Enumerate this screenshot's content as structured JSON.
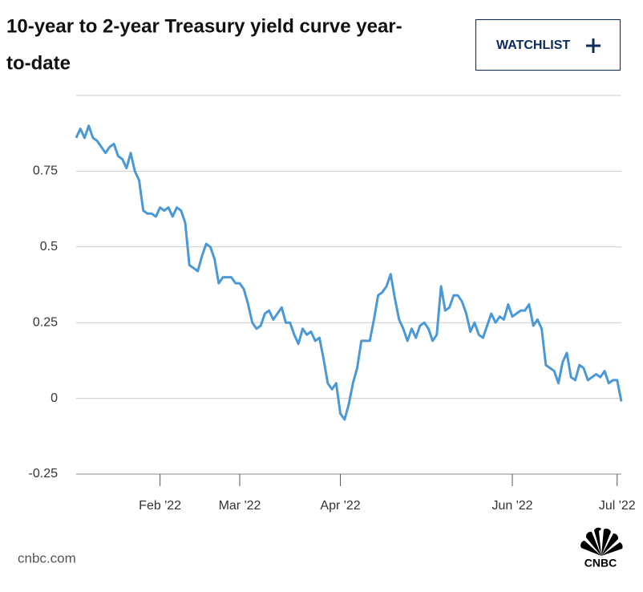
{
  "title": "10-year to 2-year Treasury yield curve year-to-date",
  "watchlist": "WATCHLIST",
  "source": "cnbc.com",
  "logo": "CNBC",
  "chart_data": {
    "type": "line",
    "categories": [
      null,
      null,
      null,
      null,
      null,
      null,
      null,
      null,
      null,
      null,
      null,
      null,
      null,
      null,
      null,
      null,
      null,
      null,
      null,
      null,
      "Feb '22",
      null,
      null,
      null,
      null,
      null,
      null,
      null,
      null,
      null,
      null,
      null,
      null,
      null,
      null,
      null,
      null,
      null,
      null,
      "Mar '22",
      null,
      null,
      null,
      null,
      null,
      null,
      null,
      null,
      null,
      null,
      null,
      null,
      null,
      null,
      null,
      null,
      null,
      null,
      null,
      null,
      null,
      null,
      null,
      "Apr '22",
      null,
      null,
      null,
      null,
      null,
      null,
      null,
      null,
      null,
      null,
      null,
      null,
      null,
      null,
      null,
      null,
      null,
      null,
      null,
      null,
      null,
      null,
      null,
      null,
      null,
      null,
      null,
      null,
      null,
      null,
      null,
      null,
      null,
      null,
      null,
      null,
      null,
      null,
      null,
      null,
      "Jun '22",
      null,
      null,
      null,
      null,
      null,
      null,
      null,
      null,
      null,
      null,
      null,
      null,
      null,
      null,
      null,
      null,
      null,
      null,
      null,
      null,
      null,
      null,
      null,
      null,
      "Jul '22",
      null
    ],
    "series": [
      {
        "name": "10-year to 2-year spread",
        "color": "#4a98d6",
        "values": [
          0.86,
          0.89,
          0.86,
          0.9,
          0.86,
          0.85,
          0.83,
          0.81,
          0.83,
          0.84,
          0.8,
          0.79,
          0.76,
          0.81,
          0.75,
          0.72,
          0.62,
          0.61,
          0.61,
          0.6,
          0.63,
          0.62,
          0.63,
          0.6,
          0.63,
          0.62,
          0.58,
          0.44,
          0.43,
          0.42,
          0.47,
          0.51,
          0.5,
          0.46,
          0.38,
          0.4,
          0.4,
          0.4,
          0.38,
          0.38,
          0.36,
          0.31,
          0.25,
          0.23,
          0.24,
          0.28,
          0.29,
          0.26,
          0.28,
          0.3,
          0.25,
          0.25,
          0.21,
          0.18,
          0.23,
          0.21,
          0.22,
          0.19,
          0.2,
          0.13,
          0.05,
          0.03,
          0.05,
          -0.05,
          -0.07,
          -0.02,
          0.05,
          0.1,
          0.19,
          0.19,
          0.19,
          0.26,
          0.34,
          0.35,
          0.37,
          0.41,
          0.33,
          0.26,
          0.23,
          0.19,
          0.23,
          0.2,
          0.24,
          0.25,
          0.23,
          0.19,
          0.21,
          0.37,
          0.29,
          0.3,
          0.34,
          0.34,
          0.32,
          0.28,
          0.22,
          0.25,
          0.21,
          0.2,
          0.24,
          0.28,
          0.25,
          0.27,
          0.26,
          0.31,
          0.27,
          0.28,
          0.29,
          0.29,
          0.31,
          0.24,
          0.26,
          0.23,
          0.11,
          0.1,
          0.09,
          0.05,
          0.12,
          0.15,
          0.07,
          0.06,
          0.11,
          0.1,
          0.06,
          0.07,
          0.08,
          0.07,
          0.09,
          0.05,
          0.06,
          0.06,
          -0.01
        ]
      }
    ],
    "ylim": [
      -0.25,
      1.0
    ],
    "yticks": [
      -0.25,
      0,
      0.25,
      0.5,
      0.75
    ],
    "grid": true
  }
}
